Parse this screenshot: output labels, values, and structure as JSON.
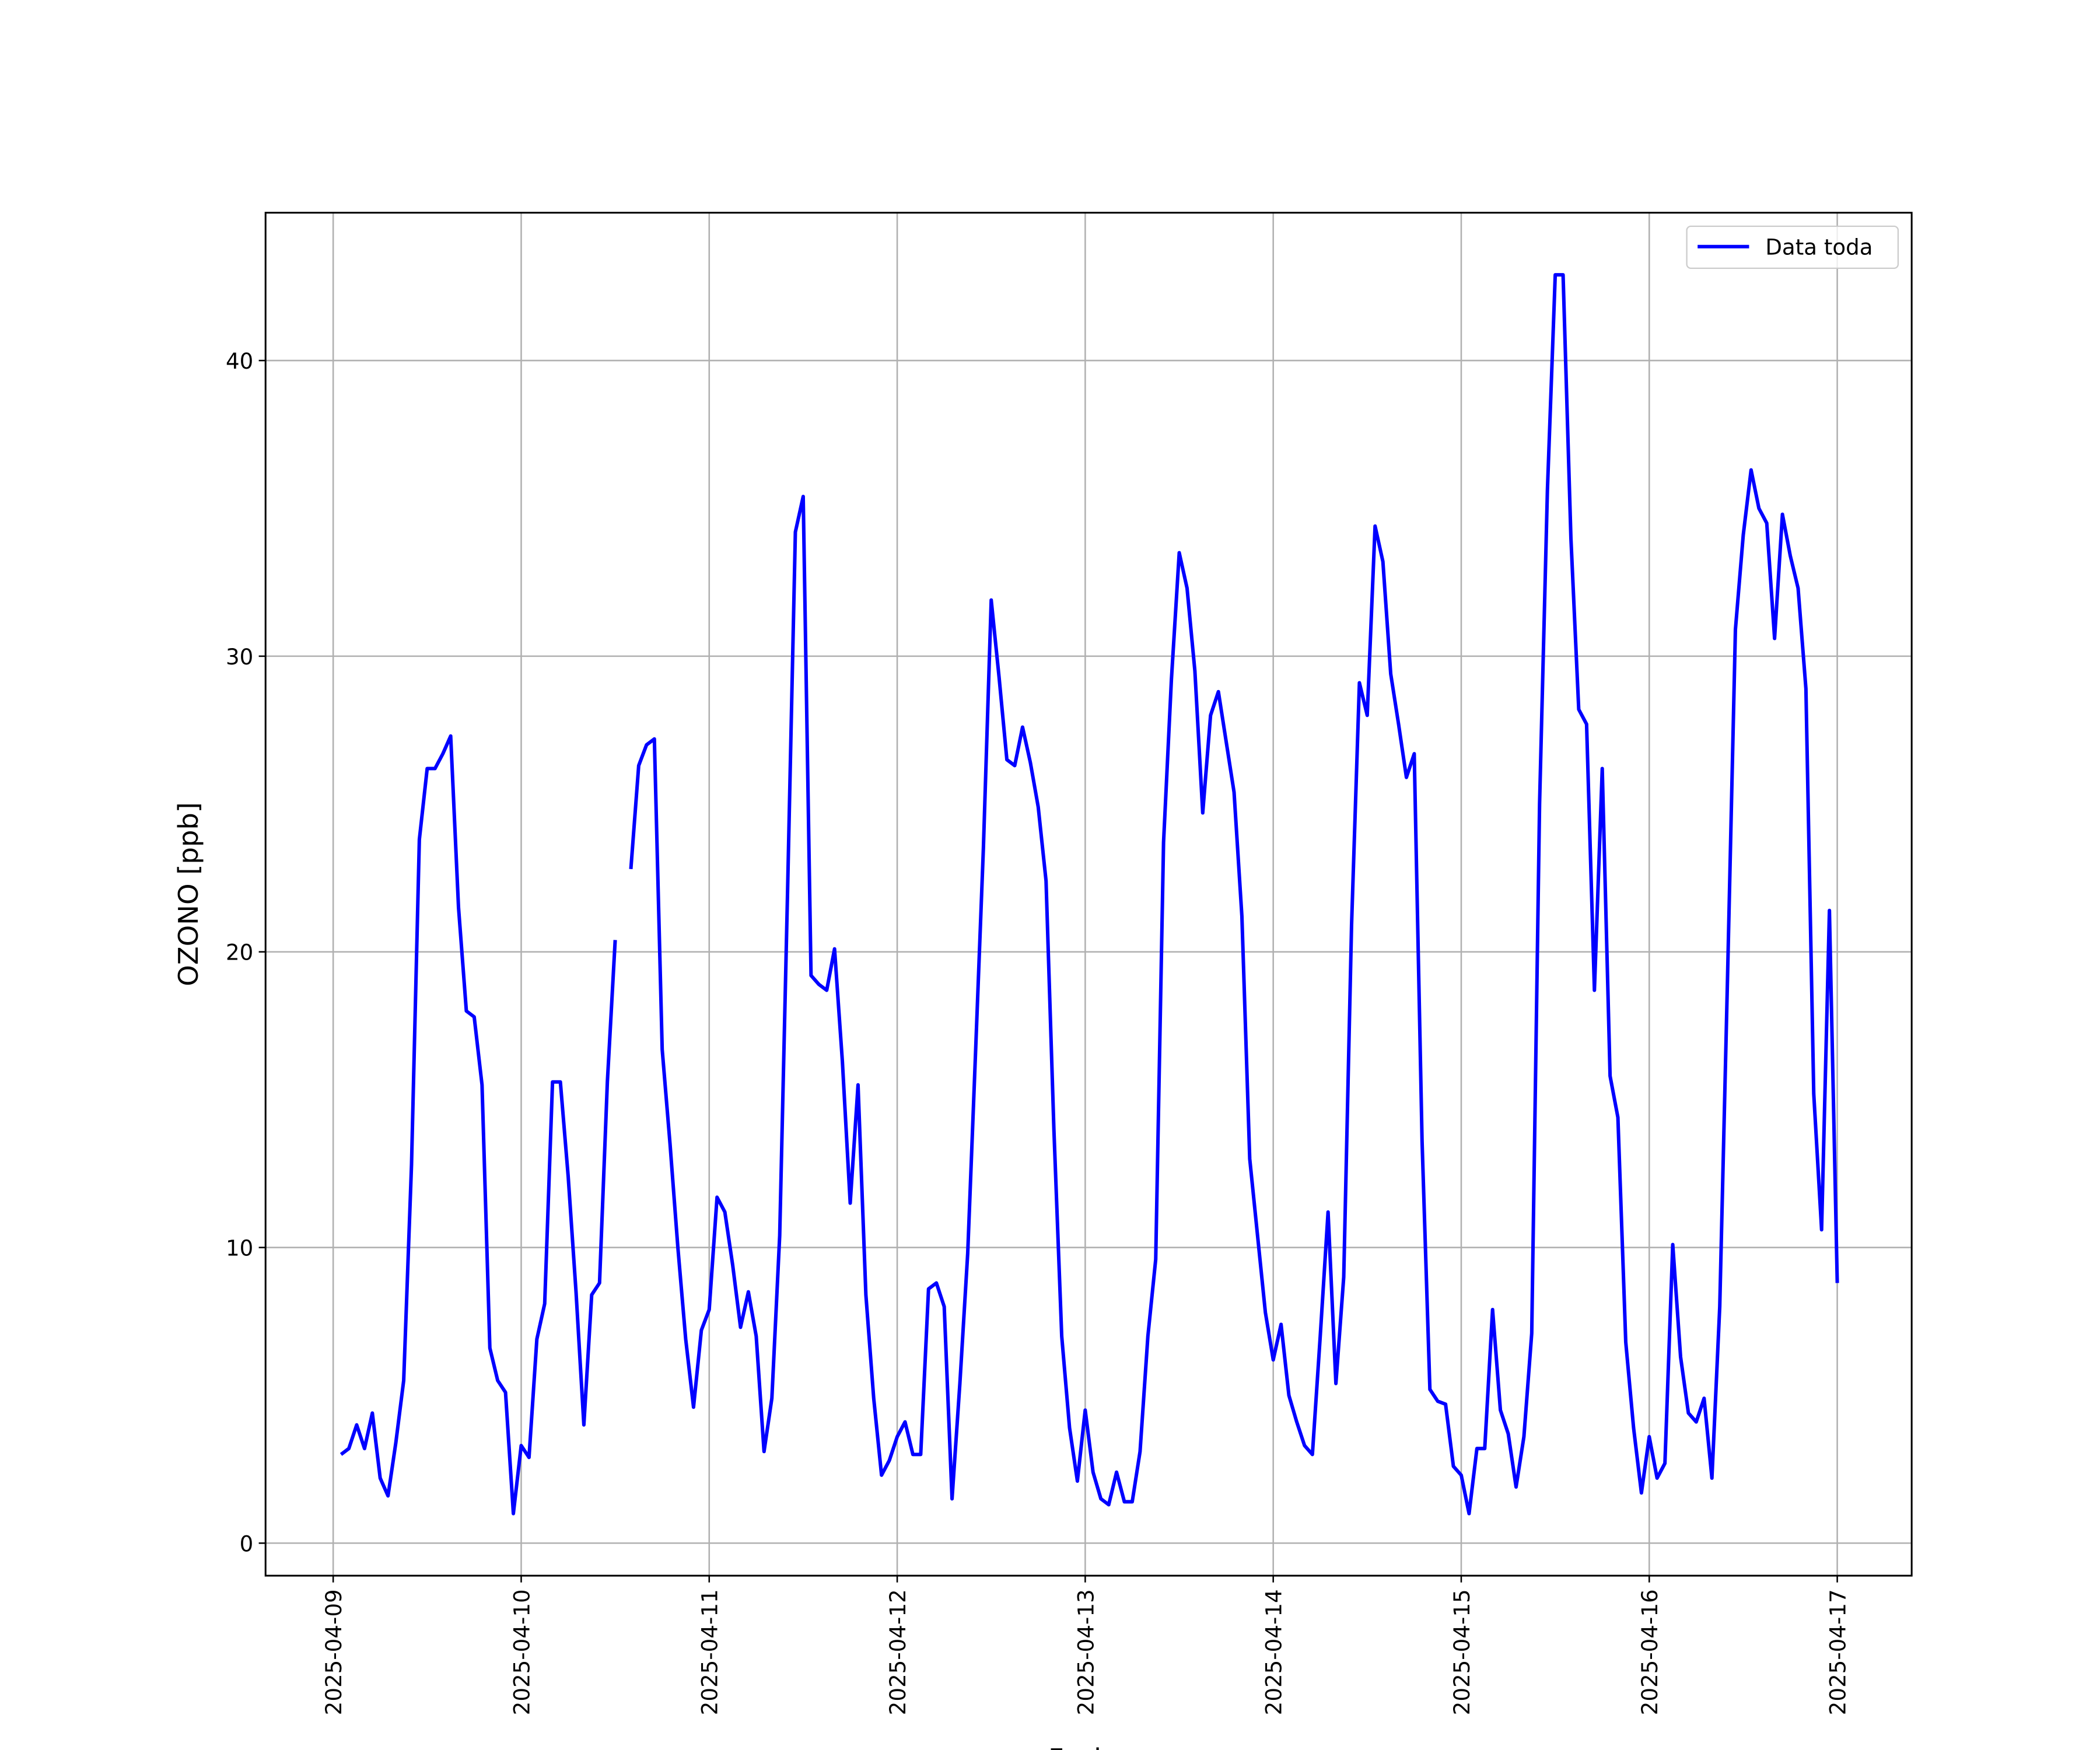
{
  "chart_data": {
    "type": "line",
    "xlabel": "Fecha",
    "ylabel": "OZONO [ppb]",
    "x": [
      "2025-04-09 01:00",
      "2025-04-09 02:00",
      "2025-04-09 03:00",
      "2025-04-09 04:00",
      "2025-04-09 05:00",
      "2025-04-09 06:00",
      "2025-04-09 07:00",
      "2025-04-09 08:00",
      "2025-04-09 09:00",
      "2025-04-09 10:00",
      "2025-04-09 11:00",
      "2025-04-09 12:00",
      "2025-04-09 13:00",
      "2025-04-09 14:00",
      "2025-04-09 15:00",
      "2025-04-09 16:00",
      "2025-04-09 17:00",
      "2025-04-09 18:00",
      "2025-04-09 19:00",
      "2025-04-09 20:00",
      "2025-04-09 21:00",
      "2025-04-09 22:00",
      "2025-04-09 23:00",
      "2025-04-10 00:00",
      "2025-04-10 01:00",
      "2025-04-10 02:00",
      "2025-04-10 03:00",
      "2025-04-10 04:00",
      "2025-04-10 05:00",
      "2025-04-10 06:00",
      "2025-04-10 07:00",
      "2025-04-10 08:00",
      "2025-04-10 09:00",
      "2025-04-10 10:00",
      "2025-04-10 11:00",
      "2025-04-10 12:00",
      "2025-04-10 13:00",
      "2025-04-10 14:00",
      "2025-04-10 15:00",
      "2025-04-10 16:00",
      "2025-04-10 17:00",
      "2025-04-10 18:00",
      "2025-04-10 19:00",
      "2025-04-10 20:00",
      "2025-04-10 21:00",
      "2025-04-10 22:00",
      "2025-04-10 23:00",
      "2025-04-11 00:00",
      "2025-04-11 01:00",
      "2025-04-11 02:00",
      "2025-04-11 03:00",
      "2025-04-11 04:00",
      "2025-04-11 05:00",
      "2025-04-11 06:00",
      "2025-04-11 07:00",
      "2025-04-11 08:00",
      "2025-04-11 09:00",
      "2025-04-11 10:00",
      "2025-04-11 11:00",
      "2025-04-11 12:00",
      "2025-04-11 13:00",
      "2025-04-11 14:00",
      "2025-04-11 15:00",
      "2025-04-11 16:00",
      "2025-04-11 17:00",
      "2025-04-11 18:00",
      "2025-04-11 19:00",
      "2025-04-11 20:00",
      "2025-04-11 21:00",
      "2025-04-11 22:00",
      "2025-04-11 23:00",
      "2025-04-12 00:00",
      "2025-04-12 01:00",
      "2025-04-12 02:00",
      "2025-04-12 03:00",
      "2025-04-12 04:00",
      "2025-04-12 05:00",
      "2025-04-12 06:00",
      "2025-04-12 07:00",
      "2025-04-12 08:00",
      "2025-04-12 09:00",
      "2025-04-12 10:00",
      "2025-04-12 11:00",
      "2025-04-12 12:00",
      "2025-04-12 13:00",
      "2025-04-12 14:00",
      "2025-04-12 15:00",
      "2025-04-12 16:00",
      "2025-04-12 17:00",
      "2025-04-12 18:00",
      "2025-04-12 19:00",
      "2025-04-12 20:00",
      "2025-04-12 21:00",
      "2025-04-12 22:00",
      "2025-04-12 23:00",
      "2025-04-13 00:00",
      "2025-04-13 01:00",
      "2025-04-13 02:00",
      "2025-04-13 03:00",
      "2025-04-13 04:00",
      "2025-04-13 05:00",
      "2025-04-13 06:00",
      "2025-04-13 07:00",
      "2025-04-13 08:00",
      "2025-04-13 09:00",
      "2025-04-13 10:00",
      "2025-04-13 11:00",
      "2025-04-13 12:00",
      "2025-04-13 13:00",
      "2025-04-13 14:00",
      "2025-04-13 15:00",
      "2025-04-13 16:00",
      "2025-04-13 17:00",
      "2025-04-13 18:00",
      "2025-04-13 19:00",
      "2025-04-13 20:00",
      "2025-04-13 21:00",
      "2025-04-13 22:00",
      "2025-04-13 23:00",
      "2025-04-14 00:00",
      "2025-04-14 01:00",
      "2025-04-14 02:00",
      "2025-04-14 03:00",
      "2025-04-14 04:00",
      "2025-04-14 05:00",
      "2025-04-14 06:00",
      "2025-04-14 07:00",
      "2025-04-14 08:00",
      "2025-04-14 09:00",
      "2025-04-14 10:00",
      "2025-04-14 11:00",
      "2025-04-14 12:00",
      "2025-04-14 13:00",
      "2025-04-14 14:00",
      "2025-04-14 15:00",
      "2025-04-14 16:00",
      "2025-04-14 17:00",
      "2025-04-14 18:00",
      "2025-04-14 19:00",
      "2025-04-14 20:00",
      "2025-04-14 21:00",
      "2025-04-14 22:00",
      "2025-04-14 23:00",
      "2025-04-15 00:00",
      "2025-04-15 01:00",
      "2025-04-15 02:00",
      "2025-04-15 03:00",
      "2025-04-15 04:00",
      "2025-04-15 05:00",
      "2025-04-15 06:00",
      "2025-04-15 07:00",
      "2025-04-15 08:00",
      "2025-04-15 09:00",
      "2025-04-15 10:00",
      "2025-04-15 11:00",
      "2025-04-15 12:00",
      "2025-04-15 13:00",
      "2025-04-15 14:00",
      "2025-04-15 15:00",
      "2025-04-15 16:00",
      "2025-04-15 17:00",
      "2025-04-15 18:00",
      "2025-04-15 19:00",
      "2025-04-15 20:00",
      "2025-04-15 21:00",
      "2025-04-15 22:00",
      "2025-04-15 23:00",
      "2025-04-16 00:00",
      "2025-04-16 01:00",
      "2025-04-16 02:00",
      "2025-04-16 03:00",
      "2025-04-16 04:00",
      "2025-04-16 05:00",
      "2025-04-16 06:00",
      "2025-04-16 07:00",
      "2025-04-16 08:00",
      "2025-04-16 09:00",
      "2025-04-16 10:00",
      "2025-04-16 11:00",
      "2025-04-16 12:00",
      "2025-04-16 13:00",
      "2025-04-16 14:00",
      "2025-04-16 15:00",
      "2025-04-16 16:00",
      "2025-04-16 17:00",
      "2025-04-16 18:00",
      "2025-04-16 19:00",
      "2025-04-16 20:00",
      "2025-04-16 21:00",
      "2025-04-16 22:00",
      "2025-04-16 23:00",
      "2025-04-17 00:00"
    ],
    "series": [
      {
        "name": "Data toda",
        "color": "#0000ff",
        "values": [
          3.0,
          3.2,
          4.0,
          3.2,
          4.4,
          2.2,
          1.6,
          3.4,
          5.5,
          12.8,
          23.8,
          26.2,
          26.2,
          26.7,
          27.3,
          21.5,
          18.0,
          17.8,
          15.5,
          6.6,
          5.5,
          5.1,
          1.0,
          3.3,
          2.9,
          6.9,
          8.1,
          15.6,
          15.6,
          12.4,
          8.5,
          4.0,
          8.4,
          8.8,
          15.6,
          20.4,
          null,
          22.8,
          26.3,
          27.0,
          27.2,
          16.7,
          13.5,
          10.0,
          6.9,
          4.6,
          7.2,
          7.9,
          11.7,
          11.2,
          9.4,
          7.3,
          8.5,
          7.0,
          3.1,
          4.9,
          10.4,
          22.0,
          34.2,
          35.4,
          19.2,
          18.9,
          18.7,
          20.1,
          16.3,
          11.5,
          15.5,
          8.4,
          4.9,
          2.3,
          2.8,
          3.6,
          4.1,
          3.0,
          3.0,
          8.6,
          8.8,
          8.0,
          1.5,
          5.4,
          9.8,
          16.6,
          23.5,
          31.9,
          29.3,
          26.5,
          26.3,
          27.6,
          26.4,
          24.9,
          22.4,
          14.0,
          7.0,
          3.9,
          2.1,
          4.5,
          2.4,
          1.5,
          1.3,
          2.4,
          1.4,
          1.4,
          3.1,
          7.0,
          9.6,
          23.7,
          29.2,
          33.5,
          32.3,
          29.5,
          24.7,
          28.0,
          28.8,
          27.1,
          25.4,
          21.2,
          13.0,
          10.4,
          7.8,
          6.2,
          7.4,
          5.0,
          4.1,
          3.3,
          3.0,
          7.0,
          11.2,
          5.4,
          9.0,
          20.9,
          29.1,
          28.0,
          34.4,
          33.2,
          29.4,
          27.7,
          25.9,
          26.7,
          13.6,
          5.2,
          4.8,
          4.7,
          2.6,
          2.3,
          1.0,
          3.2,
          3.2,
          7.9,
          4.5,
          3.7,
          1.9,
          3.6,
          7.1,
          25.0,
          35.6,
          42.9,
          42.9,
          34.0,
          28.2,
          27.7,
          18.7,
          26.2,
          15.8,
          14.4,
          6.8,
          3.9,
          1.7,
          3.6,
          2.2,
          2.7,
          10.1,
          6.3,
          4.4,
          4.1,
          4.9,
          2.2,
          8.0,
          19.2,
          30.9,
          34.1,
          36.3,
          35.0,
          34.5,
          30.6,
          34.8,
          33.4,
          32.3,
          28.9,
          15.2,
          10.6,
          21.4,
          8.8
        ]
      }
    ],
    "xlim": [
      "2025-04-08 15:22",
      "2025-04-17 09:30"
    ],
    "xticks": [
      "2025-04-09",
      "2025-04-10",
      "2025-04-11",
      "2025-04-12",
      "2025-04-13",
      "2025-04-14",
      "2025-04-15",
      "2025-04-16",
      "2025-04-17"
    ],
    "ylim": [
      -1.1,
      45.0
    ],
    "yticks": [
      0,
      10,
      20,
      30,
      40
    ],
    "grid": true,
    "legend": "upper right"
  }
}
